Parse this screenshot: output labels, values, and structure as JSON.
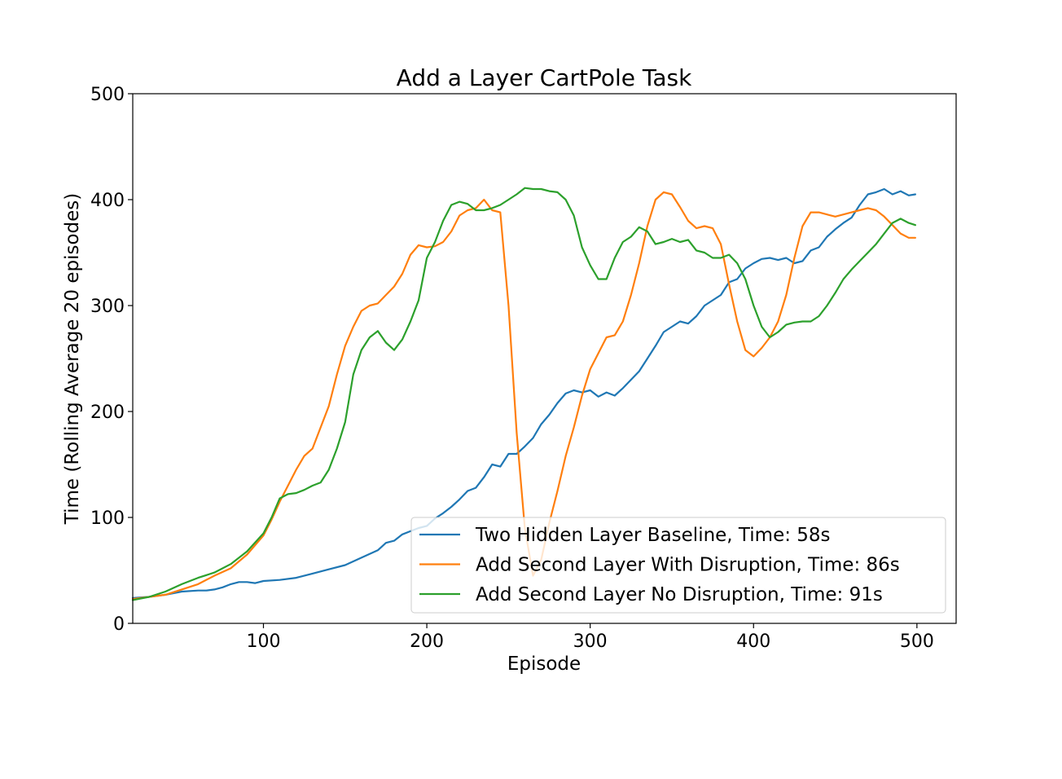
{
  "chart_data": {
    "type": "line",
    "title": "Add a Layer CartPole Task",
    "xlabel": "Episode",
    "ylabel": "Time (Rolling Average 20 episodes)",
    "xlim": [
      20,
      524
    ],
    "ylim": [
      0,
      500
    ],
    "xticks": [
      100,
      200,
      300,
      400,
      500
    ],
    "yticks": [
      0,
      100,
      200,
      300,
      400,
      500
    ],
    "legend_position": "lower-right",
    "grid": false,
    "series": [
      {
        "name": "Two Hidden Layer Baseline, Time: 58s",
        "color": "#1f77b4",
        "x": [
          20,
          30,
          40,
          50,
          60,
          65,
          70,
          75,
          80,
          85,
          90,
          95,
          100,
          110,
          120,
          130,
          140,
          150,
          160,
          170,
          175,
          180,
          185,
          190,
          195,
          200,
          205,
          210,
          215,
          220,
          225,
          230,
          235,
          240,
          245,
          250,
          255,
          260,
          265,
          270,
          275,
          280,
          285,
          290,
          295,
          300,
          305,
          310,
          315,
          320,
          325,
          330,
          335,
          340,
          345,
          350,
          355,
          360,
          365,
          370,
          375,
          380,
          385,
          390,
          395,
          400,
          405,
          410,
          415,
          420,
          425,
          430,
          435,
          440,
          445,
          450,
          455,
          460,
          465,
          470,
          475,
          480,
          485,
          490,
          495,
          499
        ],
        "y": [
          24,
          25,
          27,
          30,
          31,
          31,
          32,
          34,
          37,
          39,
          39,
          38,
          40,
          41,
          43,
          47,
          51,
          55,
          62,
          69,
          76,
          78,
          84,
          87,
          90,
          92,
          99,
          104,
          110,
          117,
          125,
          128,
          138,
          150,
          148,
          160,
          160,
          167,
          175,
          188,
          197,
          208,
          217,
          220,
          218,
          220,
          214,
          218,
          215,
          222,
          230,
          238,
          250,
          262,
          275,
          280,
          285,
          283,
          290,
          300,
          305,
          310,
          322,
          325,
          335,
          340,
          344,
          345,
          343,
          345,
          340,
          342,
          352,
          355,
          365,
          372,
          378,
          383,
          395,
          405,
          407,
          410,
          405,
          408,
          404,
          405
        ]
      },
      {
        "name": "Add Second Layer With Disruption, Time: 86s",
        "color": "#ff7f0e",
        "x": [
          20,
          30,
          40,
          50,
          60,
          70,
          80,
          90,
          100,
          105,
          110,
          115,
          120,
          125,
          130,
          135,
          140,
          145,
          150,
          155,
          160,
          165,
          170,
          175,
          180,
          185,
          190,
          195,
          200,
          205,
          210,
          215,
          220,
          225,
          230,
          235,
          240,
          245,
          250,
          255,
          260,
          265,
          270,
          275,
          280,
          285,
          290,
          295,
          300,
          305,
          310,
          315,
          320,
          325,
          330,
          335,
          340,
          345,
          350,
          355,
          360,
          365,
          370,
          375,
          380,
          385,
          390,
          395,
          400,
          405,
          410,
          415,
          420,
          425,
          430,
          435,
          440,
          445,
          450,
          455,
          460,
          465,
          470,
          475,
          480,
          485,
          490,
          495,
          499
        ],
        "y": [
          23,
          25,
          27,
          32,
          37,
          45,
          52,
          65,
          83,
          98,
          115,
          130,
          145,
          158,
          165,
          185,
          205,
          235,
          262,
          280,
          295,
          300,
          302,
          310,
          318,
          330,
          348,
          357,
          355,
          356,
          360,
          370,
          385,
          390,
          392,
          400,
          390,
          388,
          300,
          180,
          90,
          45,
          60,
          95,
          125,
          158,
          185,
          215,
          240,
          255,
          270,
          272,
          285,
          310,
          340,
          375,
          400,
          407,
          405,
          393,
          380,
          373,
          375,
          373,
          358,
          320,
          285,
          258,
          252,
          260,
          270,
          285,
          310,
          345,
          375,
          388,
          388,
          386,
          384,
          386,
          388,
          390,
          392,
          390,
          384,
          376,
          368,
          364,
          364
        ]
      },
      {
        "name": "Add Second Layer No Disruption, Time: 91s",
        "color": "#2ca02c",
        "x": [
          20,
          30,
          40,
          50,
          60,
          70,
          80,
          90,
          100,
          105,
          110,
          115,
          120,
          125,
          130,
          135,
          140,
          145,
          150,
          155,
          160,
          165,
          170,
          175,
          180,
          185,
          190,
          195,
          200,
          205,
          210,
          215,
          220,
          225,
          230,
          235,
          240,
          245,
          250,
          255,
          260,
          265,
          270,
          275,
          280,
          285,
          290,
          295,
          300,
          305,
          310,
          315,
          320,
          325,
          330,
          335,
          340,
          345,
          350,
          355,
          360,
          365,
          370,
          375,
          380,
          385,
          390,
          395,
          400,
          405,
          410,
          415,
          420,
          425,
          430,
          435,
          440,
          445,
          450,
          455,
          460,
          465,
          470,
          475,
          480,
          485,
          490,
          495,
          499
        ],
        "y": [
          22,
          25,
          30,
          37,
          43,
          48,
          56,
          68,
          85,
          100,
          118,
          122,
          123,
          126,
          130,
          133,
          145,
          165,
          190,
          235,
          258,
          270,
          276,
          265,
          258,
          268,
          285,
          305,
          345,
          360,
          380,
          395,
          398,
          396,
          390,
          390,
          392,
          395,
          400,
          405,
          411,
          410,
          410,
          408,
          407,
          400,
          385,
          355,
          338,
          325,
          325,
          345,
          360,
          365,
          374,
          370,
          358,
          360,
          363,
          360,
          362,
          352,
          350,
          345,
          345,
          348,
          340,
          325,
          300,
          280,
          270,
          275,
          282,
          284,
          285,
          285,
          290,
          300,
          312,
          325,
          334,
          342,
          350,
          358,
          368,
          378,
          382,
          378,
          376
        ]
      }
    ]
  }
}
